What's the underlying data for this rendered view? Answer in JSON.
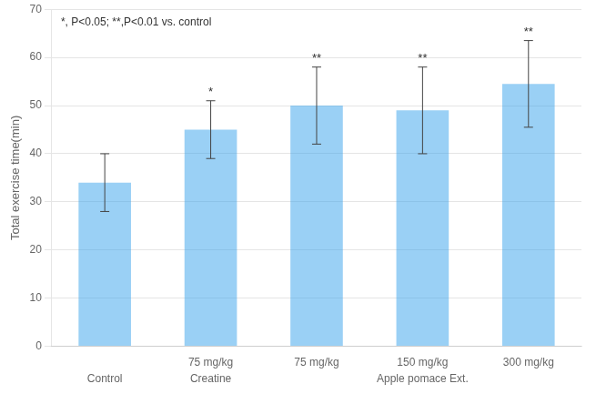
{
  "chart_data": {
    "type": "bar",
    "categories": [
      null,
      "75 mg/kg",
      "75 mg/kg",
      "150 mg/kg",
      "300 mg/kg"
    ],
    "groups": [
      "Control",
      "Creatine",
      "Apple pomace Ext.",
      "Apple pomace Ext.",
      "Apple pomace Ext."
    ],
    "values": [
      34.0,
      45.0,
      50.0,
      49.0,
      54.5
    ],
    "errors": [
      6.0,
      6.0,
      8.0,
      9.0,
      9.0
    ],
    "significance": [
      null,
      "*",
      "**",
      "**",
      "**"
    ],
    "ylabel": "Total exercise time(min)",
    "ylim": [
      0,
      70
    ],
    "yticks": [
      0,
      10,
      20,
      30,
      40,
      50,
      60,
      70
    ],
    "annotation": "*, P<0.05; **,P<0.01 vs. control",
    "grid": true
  }
}
